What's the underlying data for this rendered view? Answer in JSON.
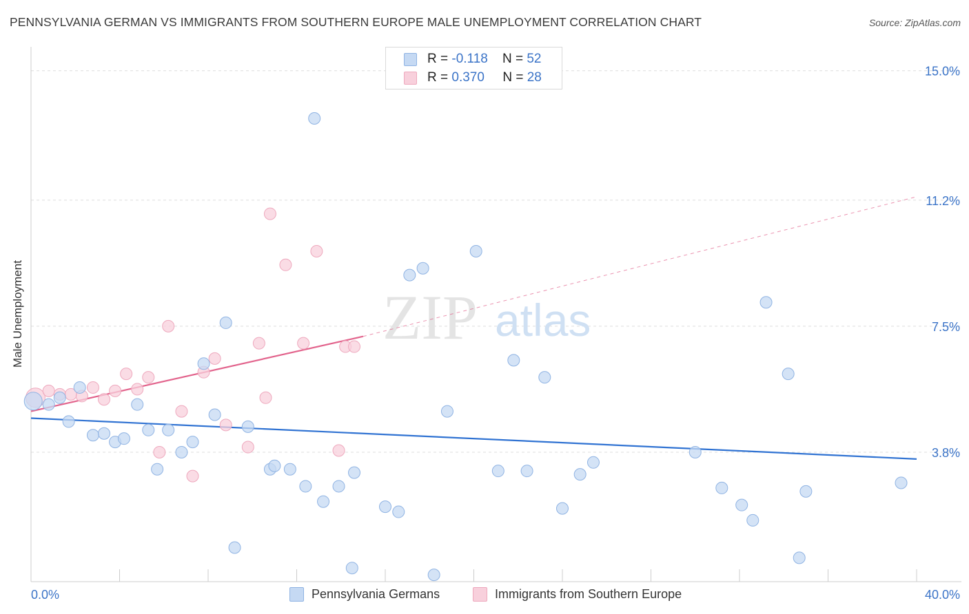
{
  "header": {
    "title": "PENNSYLVANIA GERMAN VS IMMIGRANTS FROM SOUTHERN EUROPE MALE UNEMPLOYMENT CORRELATION CHART",
    "source": "Source: ZipAtlas.com"
  },
  "watermark": {
    "zip": "ZIP",
    "atlas": "atlas"
  },
  "legend_stats": {
    "rows": [
      {
        "r_label": "R = ",
        "r_value": "-0.118",
        "n_label": "N = ",
        "n_value": "52"
      },
      {
        "r_label": "R = ",
        "r_value": "0.370",
        "n_label": "N = ",
        "n_value": "28"
      }
    ]
  },
  "legend_series": {
    "blue": "Pennsylvania Germans",
    "pink": "Immigrants from Southern Europe"
  },
  "colors": {
    "blue_fill": "#c5d9f3",
    "blue_stroke": "#8fb3e3",
    "blue_line": "#2f72d2",
    "pink_fill": "#f8d0dc",
    "pink_stroke": "#eea8bd",
    "pink_line": "#e2638c",
    "tick_label": "#3a73c7",
    "grid": "#dddddd"
  },
  "chart_data": {
    "type": "scatter",
    "title": "PENNSYLVANIA GERMAN VS IMMIGRANTS FROM SOUTHERN EUROPE MALE UNEMPLOYMENT CORRELATION CHART",
    "xlabel": "",
    "ylabel": "Male Unemployment",
    "xlim": [
      0,
      40
    ],
    "ylim": [
      0,
      15.5
    ],
    "x_tick_labels": [
      "0.0%",
      "40.0%"
    ],
    "y_ticks": [
      3.8,
      7.5,
      11.2,
      15.0
    ],
    "y_tick_labels": [
      "3.8%",
      "7.5%",
      "11.2%",
      "15.0%"
    ],
    "grid": "horizontal dashed",
    "legend": "top-center and bottom",
    "series": [
      {
        "name": "Pennsylvania Germans",
        "r": -0.118,
        "n": 52,
        "trend": {
          "x": [
            0,
            40
          ],
          "y": [
            4.8,
            3.6
          ]
        },
        "points": [
          [
            0.1,
            5.3
          ],
          [
            0.8,
            5.2
          ],
          [
            1.3,
            5.4
          ],
          [
            1.7,
            4.7
          ],
          [
            2.2,
            5.7
          ],
          [
            2.8,
            4.3
          ],
          [
            3.3,
            4.35
          ],
          [
            3.8,
            4.1
          ],
          [
            4.2,
            4.2
          ],
          [
            4.8,
            5.2
          ],
          [
            5.3,
            4.45
          ],
          [
            5.7,
            3.3
          ],
          [
            6.2,
            4.45
          ],
          [
            6.8,
            3.8
          ],
          [
            7.3,
            4.1
          ],
          [
            7.8,
            6.4
          ],
          [
            8.3,
            4.9
          ],
          [
            8.8,
            7.6
          ],
          [
            9.2,
            1.0
          ],
          [
            9.8,
            4.55
          ],
          [
            10.8,
            3.3
          ],
          [
            11.0,
            3.4
          ],
          [
            11.7,
            3.3
          ],
          [
            12.4,
            2.8
          ],
          [
            12.8,
            13.6
          ],
          [
            13.2,
            2.35
          ],
          [
            13.9,
            2.8
          ],
          [
            14.5,
            0.4
          ],
          [
            14.6,
            3.2
          ],
          [
            16.0,
            2.2
          ],
          [
            16.6,
            2.05
          ],
          [
            17.1,
            9.0
          ],
          [
            17.7,
            9.2
          ],
          [
            18.2,
            0.2
          ],
          [
            18.8,
            5.0
          ],
          [
            20.1,
            9.7
          ],
          [
            21.1,
            3.25
          ],
          [
            21.8,
            6.5
          ],
          [
            22.4,
            3.25
          ],
          [
            23.2,
            6.0
          ],
          [
            24.0,
            2.15
          ],
          [
            24.8,
            3.15
          ],
          [
            25.4,
            3.5
          ],
          [
            30.0,
            3.8
          ],
          [
            31.2,
            2.75
          ],
          [
            32.1,
            2.25
          ],
          [
            32.6,
            1.8
          ],
          [
            33.2,
            8.2
          ],
          [
            34.2,
            6.1
          ],
          [
            34.7,
            0.7
          ],
          [
            35.0,
            2.65
          ],
          [
            39.3,
            2.9
          ]
        ]
      },
      {
        "name": "Immigrants from Southern Europe",
        "r": 0.37,
        "n": 28,
        "trend_solid": {
          "x": [
            0,
            15
          ],
          "y": [
            5.0,
            7.2
          ]
        },
        "trend_dashed": {
          "x": [
            15,
            40
          ],
          "y": [
            7.2,
            11.3
          ]
        },
        "points": [
          [
            0.2,
            5.4
          ],
          [
            0.8,
            5.6
          ],
          [
            1.3,
            5.5
          ],
          [
            1.8,
            5.5
          ],
          [
            2.3,
            5.45
          ],
          [
            2.8,
            5.7
          ],
          [
            3.3,
            5.35
          ],
          [
            3.8,
            5.6
          ],
          [
            4.3,
            6.1
          ],
          [
            4.8,
            5.65
          ],
          [
            5.3,
            6.0
          ],
          [
            5.8,
            3.8
          ],
          [
            6.2,
            7.5
          ],
          [
            6.8,
            5.0
          ],
          [
            7.3,
            3.1
          ],
          [
            7.8,
            6.15
          ],
          [
            8.3,
            6.55
          ],
          [
            8.8,
            4.6
          ],
          [
            9.8,
            3.95
          ],
          [
            10.3,
            7.0
          ],
          [
            10.6,
            5.4
          ],
          [
            10.8,
            10.8
          ],
          [
            11.5,
            9.3
          ],
          [
            12.3,
            7.0
          ],
          [
            12.9,
            9.7
          ],
          [
            13.9,
            3.85
          ],
          [
            14.2,
            6.9
          ],
          [
            14.6,
            6.9
          ]
        ]
      }
    ]
  }
}
